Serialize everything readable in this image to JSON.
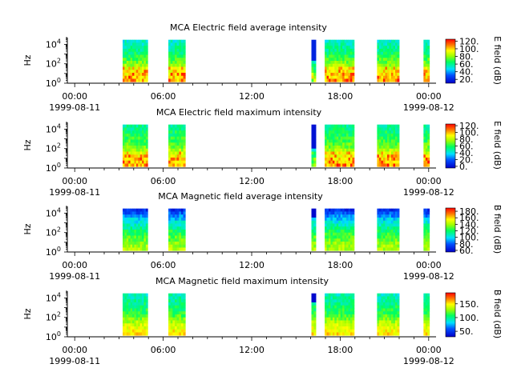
{
  "chart_data": [
    {
      "type": "heatmap",
      "title": "MCA  Electric field average intensity",
      "ylabel": "Hz",
      "cbar_label": "E field (dB)",
      "cbar_ticks": [
        "20.",
        "40.",
        "60.",
        "80.",
        "100.",
        "120."
      ],
      "cbar_range": [
        10,
        125
      ],
      "y_ticks": [
        "10^0",
        "10^2",
        "10^4"
      ],
      "y_scale": "log",
      "ylim": [
        1,
        50000
      ],
      "x_ticks": [
        "00:00",
        "06:00",
        "12:00",
        "18:00",
        "00:00"
      ],
      "x_date_labels": [
        "1999-08-11",
        "1999-08-12"
      ],
      "xlim_hours": [
        -0.5,
        24.5
      ],
      "data_intervals_hours": [
        [
          3.25,
          4.95
        ],
        [
          6.35,
          7.5
        ],
        [
          16.05,
          16.35
        ],
        [
          16.95,
          18.95
        ],
        [
          20.5,
          22.0
        ],
        [
          23.65,
          24.05
        ]
      ],
      "intensity_profile": "green-yellow at low frequency with orange/red streaks, cyan-green mid band, cyan at top",
      "colormap": "rainbow"
    },
    {
      "type": "heatmap",
      "title": "MCA  Electric field maximum intensity",
      "ylabel": "Hz",
      "cbar_label": "E field (dB)",
      "cbar_ticks": [
        "0.",
        "20.",
        "40.",
        "60.",
        "80.",
        "100.",
        "120."
      ],
      "cbar_range": [
        -5,
        125
      ],
      "y_ticks": [
        "10^0",
        "10^2",
        "10^4"
      ],
      "y_scale": "log",
      "ylim": [
        1,
        50000
      ],
      "x_ticks": [
        "00:00",
        "06:00",
        "12:00",
        "18:00",
        "00:00"
      ],
      "x_date_labels": [
        "1999-08-11",
        "1999-08-12"
      ],
      "xlim_hours": [
        -0.5,
        24.5
      ],
      "data_intervals_hours": [
        [
          3.25,
          4.95
        ],
        [
          6.35,
          7.5
        ],
        [
          16.05,
          16.35
        ],
        [
          16.95,
          18.95
        ],
        [
          20.5,
          22.0
        ],
        [
          23.65,
          24.05
        ]
      ],
      "intensity_profile": "yellow/orange at low frequency, green mid band, cyan-green at top",
      "colormap": "rainbow"
    },
    {
      "type": "heatmap",
      "title": "MCA  Magnetic field average intensity",
      "ylabel": "Hz",
      "cbar_label": "B field (dB)",
      "cbar_ticks": [
        "60.",
        "80.",
        "100.",
        "120.",
        "140.",
        "160.",
        "180."
      ],
      "cbar_range": [
        55,
        190
      ],
      "y_ticks": [
        "10^0",
        "10^2",
        "10^4"
      ],
      "y_scale": "log",
      "ylim": [
        1,
        50000
      ],
      "x_ticks": [
        "00:00",
        "06:00",
        "12:00",
        "18:00",
        "00:00"
      ],
      "x_date_labels": [
        "1999-08-11",
        "1999-08-12"
      ],
      "xlim_hours": [
        -0.5,
        24.5
      ],
      "data_intervals_hours": [
        [
          3.25,
          4.95
        ],
        [
          6.35,
          7.5
        ],
        [
          16.05,
          16.35
        ],
        [
          16.95,
          18.95
        ],
        [
          20.5,
          22.0
        ],
        [
          23.65,
          24.05
        ]
      ],
      "intensity_profile": "blue at top, cyan to green mid band, yellow-green at low frequency",
      "colormap": "rainbow"
    },
    {
      "type": "heatmap",
      "title": "MCA  Magnetic field maximum intensity",
      "ylabel": "Hz",
      "cbar_label": "B field (dB)",
      "cbar_ticks": [
        "50.",
        "100.",
        "150."
      ],
      "cbar_range": [
        30,
        190
      ],
      "y_ticks": [
        "10^0",
        "10^2",
        "10^4"
      ],
      "y_scale": "log",
      "ylim": [
        1,
        50000
      ],
      "x_ticks": [
        "00:00",
        "06:00",
        "12:00",
        "18:00",
        "00:00"
      ],
      "x_date_labels": [
        "1999-08-11",
        "1999-08-12"
      ],
      "xlim_hours": [
        -0.5,
        24.5
      ],
      "data_intervals_hours": [
        [
          3.25,
          4.95
        ],
        [
          6.35,
          7.5
        ],
        [
          16.05,
          16.35
        ],
        [
          16.95,
          18.95
        ],
        [
          20.5,
          22.0
        ],
        [
          23.65,
          24.05
        ]
      ],
      "intensity_profile": "cyan-green at top, green mid band, yellow with orange streaks at low frequency",
      "colormap": "rainbow"
    }
  ]
}
